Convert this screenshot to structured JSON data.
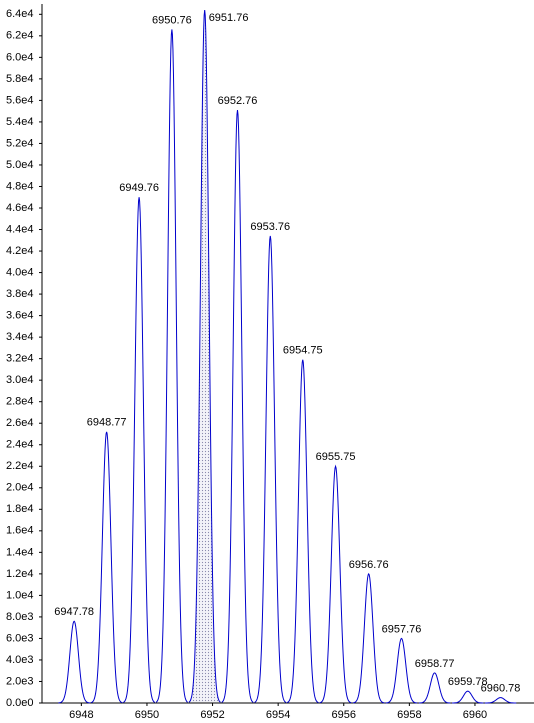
{
  "chart_data": {
    "type": "spectrum",
    "x": [
      6947.78,
      6948.77,
      6949.76,
      6950.76,
      6951.76,
      6952.76,
      6953.76,
      6954.75,
      6955.75,
      6956.76,
      6957.76,
      6958.77,
      6959.78,
      6960.78
    ],
    "values": [
      7600,
      25200,
      47000,
      62600,
      64400,
      55100,
      43400,
      31900,
      22000,
      12000,
      6000,
      2800,
      1100,
      500
    ],
    "color": "#0000cc",
    "xlim": [
      6946.8,
      6961.8
    ],
    "xticks": [
      6948,
      6950,
      6952,
      6954,
      6956,
      6958,
      6960
    ],
    "ylim": [
      0,
      64400
    ],
    "yticks": [
      {
        "value": 0,
        "label": "0.0e0"
      },
      {
        "value": 2000,
        "label": "2.0e3"
      },
      {
        "value": 4000,
        "label": "4.0e3"
      },
      {
        "value": 6000,
        "label": "6.0e3"
      },
      {
        "value": 8000,
        "label": "8.0e3"
      },
      {
        "value": 10000,
        "label": "1.0e4"
      },
      {
        "value": 12000,
        "label": "1.2e4"
      },
      {
        "value": 14000,
        "label": "1.4e4"
      },
      {
        "value": 16000,
        "label": "1.6e4"
      },
      {
        "value": 18000,
        "label": "1.8e4"
      },
      {
        "value": 20000,
        "label": "2.0e4"
      },
      {
        "value": 22000,
        "label": "2.2e4"
      },
      {
        "value": 24000,
        "label": "2.4e4"
      },
      {
        "value": 26000,
        "label": "2.6e4"
      },
      {
        "value": 28000,
        "label": "2.8e4"
      },
      {
        "value": 30000,
        "label": "3.0e4"
      },
      {
        "value": 32000,
        "label": "3.2e4"
      },
      {
        "value": 34000,
        "label": "3.4e4"
      },
      {
        "value": 36000,
        "label": "3.6e4"
      },
      {
        "value": 38000,
        "label": "3.8e4"
      },
      {
        "value": 40000,
        "label": "4.0e4"
      },
      {
        "value": 42000,
        "label": "4.2e4"
      },
      {
        "value": 44000,
        "label": "4.4e4"
      },
      {
        "value": 46000,
        "label": "4.6e4"
      },
      {
        "value": 48000,
        "label": "4.8e4"
      },
      {
        "value": 50000,
        "label": "5.0e4"
      },
      {
        "value": 52000,
        "label": "5.2e4"
      },
      {
        "value": 54000,
        "label": "5.4e4"
      },
      {
        "value": 56000,
        "label": "5.6e4"
      },
      {
        "value": 58000,
        "label": "5.8e4"
      },
      {
        "value": 60000,
        "label": "6.0e4"
      },
      {
        "value": 62000,
        "label": "6.2e4"
      },
      {
        "value": 64000,
        "label": "6.4e4"
      }
    ],
    "highlight_index": 4
  }
}
